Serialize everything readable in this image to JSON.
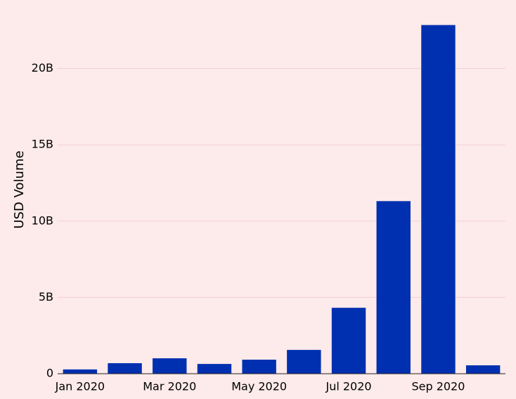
{
  "chart_data": {
    "type": "bar",
    "y_label": "USD Volume",
    "x": [
      "2020-01",
      "2020-02",
      "2020-03",
      "2020-04",
      "2020-05",
      "2020-06",
      "2020-07",
      "2020-08",
      "2020-09",
      "2020-10"
    ],
    "values": [
      280000000,
      690000000,
      1010000000,
      640000000,
      920000000,
      1560000000,
      4320000000,
      11310000000,
      22850000000,
      550000000
    ],
    "color": "#0030b0",
    "ylim": [
      0,
      23800000000
    ],
    "yticks": [
      0,
      {
        "value": 5000000000,
        "label": "5B"
      },
      {
        "value": 10000000000,
        "label": "10B"
      },
      {
        "value": 15000000000,
        "label": "15B"
      },
      {
        "value": 20000000000,
        "label": "20B"
      }
    ],
    "xticks": [
      {
        "value": "2020-01",
        "label": "Jan 2020"
      },
      {
        "value": "2020-03",
        "label": "Mar 2020"
      },
      {
        "value": "2020-05",
        "label": "May 2020"
      },
      {
        "value": "2020-07",
        "label": "Jul 2020"
      },
      {
        "value": "2020-09",
        "label": "Sep 2020"
      }
    ],
    "grid": true
  }
}
